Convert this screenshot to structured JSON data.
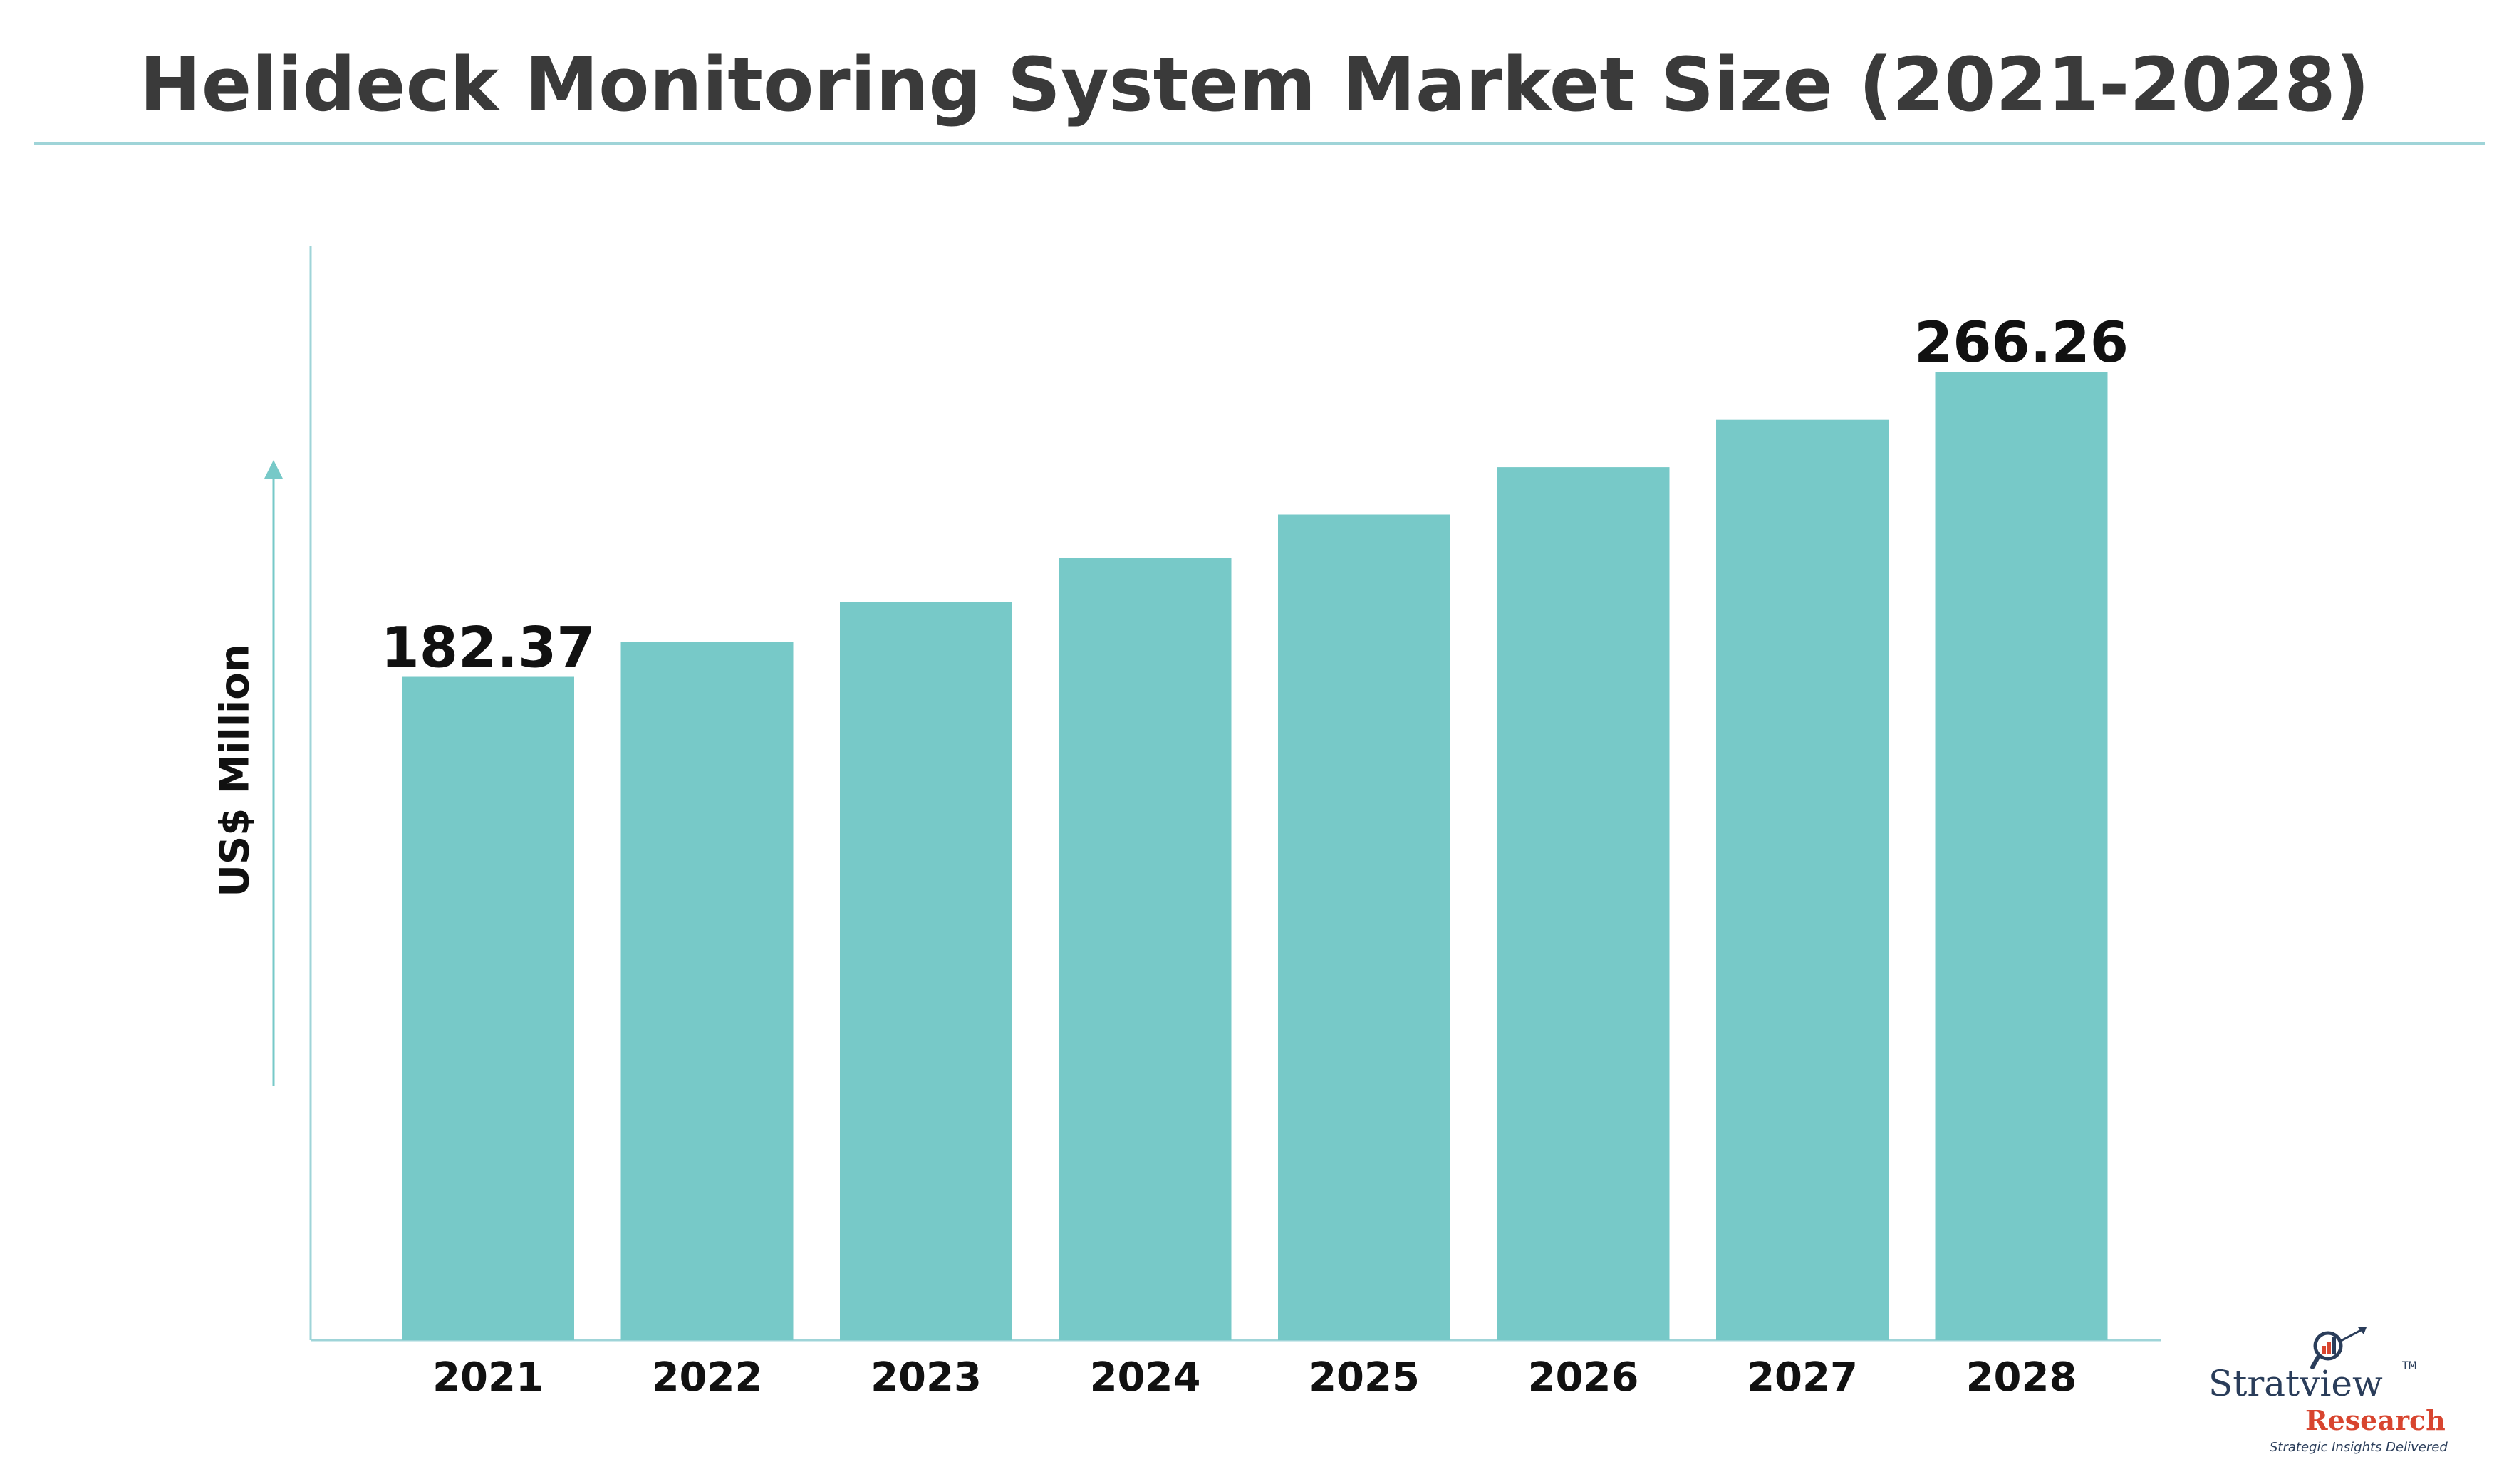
{
  "title": "Helideck Monitoring System Market Size (2021-2028)",
  "colors": {
    "bar": "#77c9c8",
    "axis": "#9fd4d8",
    "label": "#111111",
    "title": "#3a3a3a"
  },
  "logo": {
    "name": "Stratview",
    "tm": "TM",
    "research": "Research",
    "tagline": "Strategic Insights Delivered"
  },
  "chart_data": {
    "type": "bar",
    "title": "Helideck Monitoring System Market Size (2021-2028)",
    "xlabel": "",
    "ylabel": "US$ Million",
    "categories": [
      "2021",
      "2022",
      "2023",
      "2024",
      "2025",
      "2026",
      "2027",
      "2028"
    ],
    "values": [
      182.37,
      192.0,
      203.0,
      215.0,
      227.0,
      240.0,
      253.0,
      266.26
    ],
    "data_labels": [
      "182.37",
      "",
      "",
      "",
      "",
      "",
      "",
      "266.26"
    ],
    "ylim": [
      0,
      300
    ],
    "grid": false,
    "legend": "none"
  }
}
